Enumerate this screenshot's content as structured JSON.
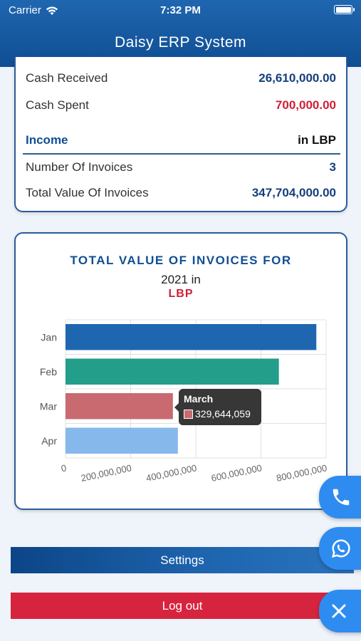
{
  "status_bar": {
    "carrier": "Carrier",
    "time": "7:32 PM"
  },
  "header": {
    "title": "Daisy ERP System"
  },
  "summary": {
    "cash_received_label": "Cash Received",
    "cash_received_value": "26,610,000.00",
    "cash_spent_label": "Cash Spent",
    "cash_spent_value": "700,000.00",
    "income_label": "Income",
    "income_currency": "in LBP",
    "invoices_count_label": "Number Of Invoices",
    "invoices_count_value": "3",
    "invoices_total_label": "Total Value Of Invoices",
    "invoices_total_value": "347,704,000.00"
  },
  "chart_data": {
    "type": "bar",
    "orientation": "horizontal",
    "title": "TOTAL VALUE OF INVOICES FOR",
    "subtitle": "2021 in",
    "currency": "LBP",
    "categories": [
      "Jan",
      "Feb",
      "Mar",
      "Apr"
    ],
    "values": [
      770000000,
      655000000,
      329644059,
      345000000
    ],
    "colors": [
      "#1f66b0",
      "#229e8a",
      "#c86a70",
      "#86b8ec"
    ],
    "x_ticks": [
      "0",
      "200,000,000",
      "400,000,000",
      "600,000,000",
      "800,000,000"
    ],
    "xlim": [
      0,
      800000000
    ],
    "grid": true,
    "tooltip": {
      "title": "March",
      "value": "329,644,059"
    }
  },
  "actions": {
    "settings_label": "Settings",
    "logout_label": "Log out"
  },
  "fabs": {
    "phone": "phone-icon",
    "whatsapp": "whatsapp-icon",
    "close": "close-icon"
  },
  "colors": {
    "primary": "#0f4e92",
    "accent_red": "#cf1f38",
    "fab": "#2e8cf0"
  }
}
